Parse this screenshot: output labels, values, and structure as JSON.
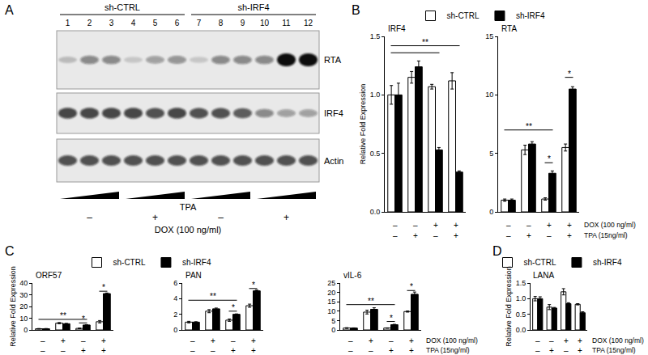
{
  "panel_labels": [
    "A",
    "B",
    "C",
    "D"
  ],
  "blot": {
    "groups": [
      {
        "label": "sh-CTRL",
        "from": 1,
        "to": 6
      },
      {
        "label": "sh-IRF4",
        "from": 7,
        "to": 12
      }
    ],
    "lanes": [
      1,
      2,
      3,
      4,
      5,
      6,
      7,
      8,
      9,
      10,
      11,
      12
    ],
    "rows": [
      {
        "label": "RTA",
        "intensity": [
          0.2,
          0.45,
          0.45,
          0.15,
          0.35,
          0.4,
          0.15,
          0.45,
          0.45,
          0.45,
          1,
          1
        ]
      },
      {
        "label": "IRF4",
        "intensity": [
          0.75,
          0.75,
          0.75,
          0.75,
          0.7,
          0.75,
          0.7,
          0.7,
          0.65,
          0.45,
          0.35,
          0.35
        ]
      },
      {
        "label": "Actin",
        "intensity": [
          0.7,
          0.7,
          0.7,
          0.7,
          0.7,
          0.7,
          0.7,
          0.7,
          0.7,
          0.7,
          0.7,
          0.7
        ]
      }
    ],
    "ramp_label": "TPA",
    "dox": [
      "–",
      "+",
      "–",
      "+"
    ],
    "dox_label": "DOX (100 ng/ml)"
  },
  "chart_data": [
    {
      "type": "bar",
      "title": "IRF4",
      "y_label": "Relative Fold Expression",
      "legend": "top",
      "categories": [
        null,
        null,
        null,
        null
      ],
      "tick_labels": "y",
      "series": [
        {
          "name": "sh-CTRL",
          "color": "#ffffff",
          "values": [
            1.0,
            1.15,
            1.07,
            1.12
          ],
          "errors": [
            0.08,
            0.05,
            0.02,
            0.07
          ]
        },
        {
          "name": "sh-IRF4",
          "color": "#000000",
          "values": [
            1.0,
            1.24,
            0.53,
            0.34
          ],
          "errors": [
            0.1,
            0.05,
            0.02,
            0.01
          ]
        }
      ],
      "ylim": [
        0,
        1.5
      ],
      "yticks": [
        {
          "value": 0,
          "label": "0.0"
        },
        {
          "value": 0.5,
          "label": "0.5"
        },
        {
          "value": 1,
          "label": "1.0"
        },
        {
          "value": 1.5,
          "label": "1.5"
        }
      ],
      "treatments": [
        {
          "values": [
            "–",
            "–",
            "+",
            "+"
          ]
        },
        {
          "values": [
            "–",
            "+",
            "–",
            "+"
          ]
        }
      ],
      "annotations": [
        {
          "from": 0,
          "to": 2,
          "y": 1.36
        },
        {
          "from": 0,
          "to": 3,
          "y": 1.42,
          "text": "**"
        }
      ]
    },
    {
      "type": "bar",
      "title": "RTA",
      "categories": [
        null,
        null,
        null,
        null
      ],
      "tick_labels": "y",
      "series": [
        {
          "name": "sh-CTRL",
          "color": "#ffffff",
          "values": [
            1.0,
            5.3,
            1.1,
            5.5
          ],
          "errors": [
            0.1,
            0.4,
            0.1,
            0.3
          ]
        },
        {
          "name": "sh-IRF4",
          "color": "#000000",
          "values": [
            1.0,
            5.8,
            3.3,
            10.5
          ],
          "errors": [
            0.1,
            0.2,
            0.2,
            0.2
          ]
        }
      ],
      "ylim": [
        0,
        15
      ],
      "yticks": [
        0,
        5,
        10,
        15
      ],
      "treatments": [
        {
          "label": "DOX (100 ng/ml)",
          "values": [
            "–",
            "–",
            "+",
            "+"
          ]
        },
        {
          "label": "TPA (15ng/ml)",
          "values": [
            "–",
            "+",
            "–",
            "+"
          ]
        }
      ],
      "annotations": [
        {
          "from": 0,
          "to": 2,
          "y": 7,
          "text": "**"
        },
        {
          "from": 2,
          "to": 2,
          "y": 4.2,
          "text": "*"
        },
        {
          "from": 3,
          "to": 3,
          "y": 11.5,
          "text": "*"
        }
      ]
    },
    {
      "type": "bar",
      "title": "ORF57",
      "y_label": "Relative Fold Expression",
      "legend": "top",
      "categories": [
        null,
        null,
        null,
        null
      ],
      "tick_labels": "y",
      "series": [
        {
          "name": "sh-CTRL",
          "color": "#ffffff",
          "values": [
            1,
            5.8,
            1.3,
            7
          ],
          "errors": [
            0.2,
            0.5,
            0.2,
            1
          ]
        },
        {
          "name": "sh-IRF4",
          "color": "#000000",
          "values": [
            1,
            5.3,
            4.2,
            31
          ],
          "errors": [
            0.2,
            0.3,
            0.3,
            0.5
          ]
        }
      ],
      "ylim": [
        0,
        40
      ],
      "yticks": [
        0,
        10,
        20,
        30,
        40
      ],
      "treatments": [
        {
          "values": [
            "–",
            "+",
            "–",
            "+"
          ]
        },
        {
          "values": [
            "–",
            "–",
            "+",
            "+"
          ]
        }
      ],
      "annotations": [
        {
          "from": 0,
          "to": 2,
          "y": 9,
          "text": "**"
        },
        {
          "from": 2,
          "to": 2,
          "y": 6,
          "text": "*"
        },
        {
          "from": 3,
          "to": 3,
          "y": 33,
          "text": "*"
        }
      ]
    },
    {
      "type": "bar",
      "title": "PAN",
      "categories": [
        null,
        null,
        null,
        null
      ],
      "tick_labels": "y",
      "series": [
        {
          "name": "sh-CTRL",
          "color": "#ffffff",
          "values": [
            1,
            2.4,
            1.25,
            3.1
          ],
          "errors": [
            0.1,
            0.2,
            0.15,
            0.2
          ]
        },
        {
          "name": "sh-IRF4",
          "color": "#000000",
          "values": [
            1,
            2.7,
            2.0,
            5.0
          ],
          "errors": [
            0.05,
            0.1,
            0.05,
            0.1
          ]
        }
      ],
      "ylim": [
        0,
        6
      ],
      "yticks": [
        0,
        2,
        4,
        6
      ],
      "treatments": [
        {
          "values": [
            "–",
            "+",
            "–",
            "+"
          ]
        },
        {
          "values": [
            "–",
            "–",
            "+",
            "+"
          ]
        }
      ],
      "annotations": [
        {
          "from": 0,
          "to": 2,
          "y": 3.8,
          "text": "**"
        },
        {
          "from": 2,
          "to": 2,
          "y": 2.4,
          "text": "*"
        },
        {
          "from": 3,
          "to": 3,
          "y": 5.3,
          "text": "*"
        }
      ]
    },
    {
      "type": "bar",
      "title": "vIL-6",
      "categories": [
        null,
        null,
        null,
        null
      ],
      "tick_labels": "y",
      "series": [
        {
          "name": "sh-CTRL",
          "color": "#ffffff",
          "values": [
            1,
            9.5,
            1,
            9.8
          ],
          "errors": [
            0.2,
            1,
            0.1,
            0.3
          ]
        },
        {
          "name": "sh-IRF4",
          "color": "#000000",
          "values": [
            1,
            11,
            2.8,
            19
          ],
          "errors": [
            0.1,
            0.8,
            0.2,
            1.2
          ]
        }
      ],
      "ylim": [
        0,
        25
      ],
      "yticks": [
        0,
        5,
        10,
        15,
        20,
        25
      ],
      "treatments": [
        {
          "label": "DOX (100 ng/ml)",
          "values": [
            "–",
            "+",
            "–",
            "+"
          ]
        },
        {
          "label": "TPA (15ng/ml)",
          "values": [
            "–",
            "–",
            "+",
            "+"
          ]
        }
      ],
      "annotations": [
        {
          "from": 0,
          "to": 2,
          "y": 13.5,
          "text": "**"
        },
        {
          "from": 2,
          "to": 2,
          "y": 4.5,
          "text": "*"
        },
        {
          "from": 3,
          "to": 3,
          "y": 21,
          "text": "*"
        }
      ]
    },
    {
      "type": "bar",
      "title": "LANA",
      "y_label": "Relative Fold Expression",
      "legend": "top",
      "categories": [
        null,
        null,
        null,
        null
      ],
      "tick_labels": "y",
      "series": [
        {
          "name": "sh-CTRL",
          "color": "#ffffff",
          "values": [
            1.0,
            0.73,
            1.22,
            0.82
          ],
          "errors": [
            0.07,
            0.08,
            0.1,
            0.02
          ]
        },
        {
          "name": "sh-IRF4",
          "color": "#000000",
          "values": [
            1.0,
            0.7,
            0.84,
            0.55
          ],
          "errors": [
            0.06,
            0.02,
            0.03,
            0.03
          ]
        }
      ],
      "ylim": [
        0,
        1.5
      ],
      "yticks": [
        {
          "value": 0,
          "label": "0.0"
        },
        {
          "value": 0.5,
          "label": "0.5"
        },
        {
          "value": 1,
          "label": "1.0"
        },
        {
          "value": 1.5,
          "label": "1.5"
        }
      ],
      "treatments": [
        {
          "label": "DOX (100 ng/ml)",
          "values": [
            "–",
            "–",
            "+",
            "+"
          ]
        },
        {
          "label": "TPA (15ng/ml)",
          "values": [
            "–",
            "+",
            "–",
            "+"
          ]
        }
      ]
    }
  ]
}
